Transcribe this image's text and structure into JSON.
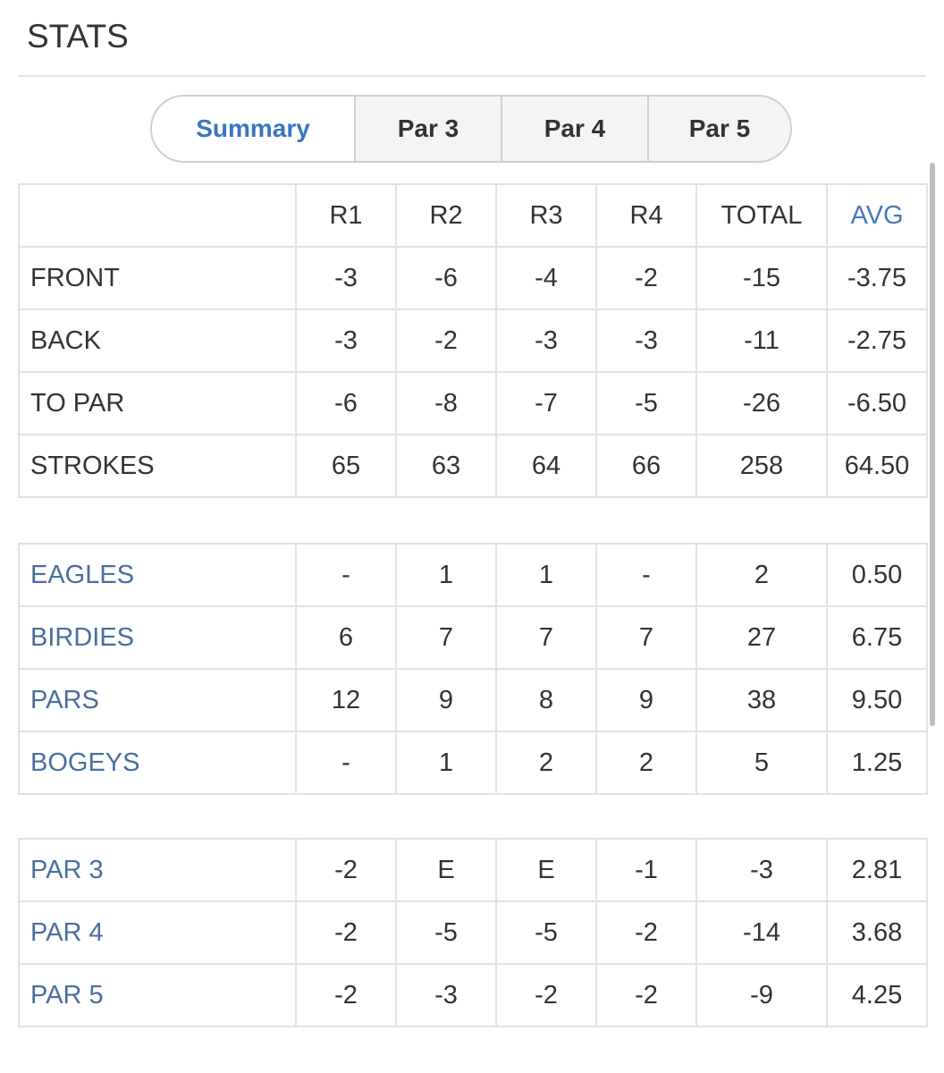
{
  "title": "STATS",
  "tabs": [
    "Summary",
    "Par 3",
    "Par 4",
    "Par 5"
  ],
  "header": [
    "",
    "R1",
    "R2",
    "R3",
    "R4",
    "TOTAL",
    "AVG"
  ],
  "score_rows": [
    {
      "label": "FRONT",
      "cells": [
        "-3",
        "-6",
        "-4",
        "-2",
        "-15",
        "-3.75"
      ]
    },
    {
      "label": "BACK",
      "cells": [
        "-3",
        "-2",
        "-3",
        "-3",
        "-11",
        "-2.75"
      ]
    },
    {
      "label": "TO PAR",
      "cells": [
        "-6",
        "-8",
        "-7",
        "-5",
        "-26",
        "-6.50"
      ]
    },
    {
      "label": "STROKES",
      "cells": [
        "65",
        "63",
        "64",
        "66",
        "258",
        "64.50"
      ]
    }
  ],
  "hole_rows": [
    {
      "label": "EAGLES",
      "cells": [
        "-",
        "1",
        "1",
        "-",
        "2",
        "0.50"
      ]
    },
    {
      "label": "BIRDIES",
      "cells": [
        "6",
        "7",
        "7",
        "7",
        "27",
        "6.75"
      ]
    },
    {
      "label": "PARS",
      "cells": [
        "12",
        "9",
        "8",
        "9",
        "38",
        "9.50"
      ]
    },
    {
      "label": "BOGEYS",
      "cells": [
        "-",
        "1",
        "2",
        "2",
        "5",
        "1.25"
      ]
    }
  ],
  "par_rows": [
    {
      "label": "PAR 3",
      "cells": [
        "-2",
        "E",
        "E",
        "-1",
        "-3",
        "2.81"
      ]
    },
    {
      "label": "PAR 4",
      "cells": [
        "-2",
        "-5",
        "-5",
        "-2",
        "-14",
        "3.68"
      ]
    },
    {
      "label": "PAR 5",
      "cells": [
        "-2",
        "-3",
        "-2",
        "-2",
        "-9",
        "4.25"
      ]
    }
  ]
}
